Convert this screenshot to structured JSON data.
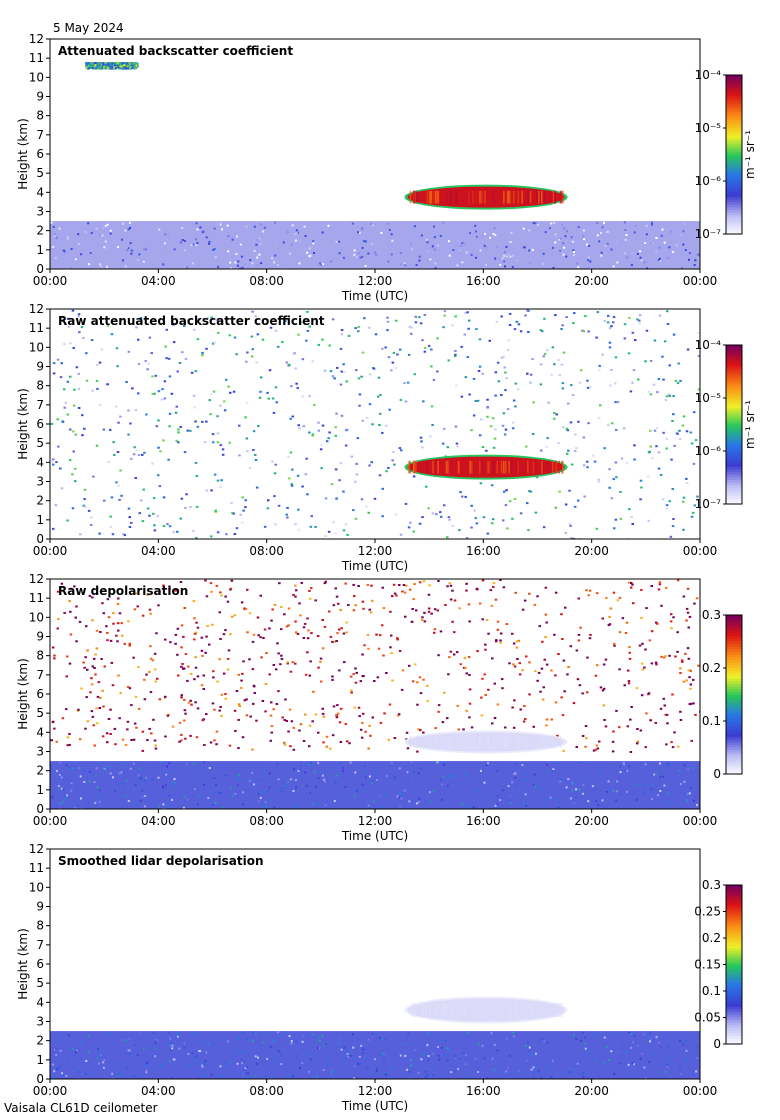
{
  "date": "5 May 2024",
  "footer": "Vaisala CL61D ceilometer",
  "colors": {
    "background": "#ffffff",
    "low_signal": "#3c3cd2",
    "high_signal": "#e62814",
    "depol_noise": "#8c1a6e",
    "depol_low": "#2828e6"
  },
  "chart_data": [
    {
      "type": "heatmap",
      "title": "Attenuated backscatter coefficient",
      "xlabel": "Time (UTC)",
      "ylabel": "Height (km)",
      "xticks": [
        "00:00",
        "04:00",
        "08:00",
        "12:00",
        "16:00",
        "20:00",
        "00:00"
      ],
      "xlim": [
        0,
        24
      ],
      "ylim": [
        0,
        12
      ],
      "yticks": [
        0,
        1,
        2,
        3,
        4,
        5,
        6,
        7,
        8,
        9,
        10,
        11,
        12
      ],
      "colorbar": {
        "scale": "log",
        "unit": "m⁻¹ sr⁻¹",
        "range": [
          1e-07,
          0.0001
        ],
        "ticks": [
          "10⁻⁴",
          "10⁻⁵",
          "10⁻⁶",
          "10⁻⁷"
        ]
      },
      "features": [
        {
          "label": "boundary layer aerosol",
          "t_start": 0,
          "t_end": 24,
          "h_bottom": 0,
          "h_top": 2.5,
          "value": 3e-07
        },
        {
          "label": "mid-level cloud",
          "t_start": 13.2,
          "t_end": 19.0,
          "h_bottom": 3.2,
          "h_top": 4.3,
          "value": 5e-05
        },
        {
          "label": "high-level layer",
          "t_start": 1.3,
          "t_end": 3.2,
          "h_bottom": 10.5,
          "h_top": 10.8,
          "value": 2e-06
        }
      ]
    },
    {
      "type": "heatmap",
      "title": "Raw attenuated backscatter coefficient",
      "xlabel": "Time (UTC)",
      "ylabel": "Height (km)",
      "xticks": [
        "00:00",
        "04:00",
        "08:00",
        "12:00",
        "16:00",
        "20:00",
        "00:00"
      ],
      "xlim": [
        0,
        24
      ],
      "ylim": [
        0,
        12
      ],
      "yticks": [
        0,
        1,
        2,
        3,
        4,
        5,
        6,
        7,
        8,
        9,
        10,
        11,
        12
      ],
      "colorbar": {
        "scale": "log",
        "unit": "m⁻¹ sr⁻¹",
        "range": [
          1e-07,
          0.0001
        ],
        "ticks": [
          "10⁻⁴",
          "10⁻⁵",
          "10⁻⁶",
          "10⁻⁷"
        ]
      },
      "features": [
        {
          "label": "noisy background",
          "t_start": 0,
          "t_end": 24,
          "h_bottom": 0,
          "h_top": 12,
          "value": 8e-07
        },
        {
          "label": "mid-level cloud",
          "t_start": 13.2,
          "t_end": 19.0,
          "h_bottom": 3.2,
          "h_top": 4.3,
          "value": 5e-05
        }
      ]
    },
    {
      "type": "heatmap",
      "title": "Raw depolarisation",
      "xlabel": "Time (UTC)",
      "ylabel": "Height (km)",
      "xticks": [
        "00:00",
        "04:00",
        "08:00",
        "12:00",
        "16:00",
        "20:00",
        "00:00"
      ],
      "xlim": [
        0,
        24
      ],
      "ylim": [
        0,
        12
      ],
      "yticks": [
        0,
        1,
        2,
        3,
        4,
        5,
        6,
        7,
        8,
        9,
        10,
        11,
        12
      ],
      "colorbar": {
        "scale": "linear",
        "unit": "",
        "range": [
          0,
          0.3
        ],
        "ticks": [
          "0.3",
          "0.2",
          "0.1",
          "0"
        ]
      },
      "features": [
        {
          "label": "noise above boundary layer",
          "t_start": 0,
          "t_end": 24,
          "h_bottom": 3,
          "h_top": 12,
          "value": 0.28
        },
        {
          "label": "boundary layer",
          "t_start": 0,
          "t_end": 24,
          "h_bottom": 0,
          "h_top": 2.5,
          "value": 0.08
        },
        {
          "label": "cloud",
          "t_start": 13.2,
          "t_end": 19.0,
          "h_bottom": 3.0,
          "h_top": 4.0,
          "value": 0.02
        }
      ]
    },
    {
      "type": "heatmap",
      "title": "Smoothed lidar depolarisation",
      "xlabel": "Time (UTC)",
      "ylabel": "Height (km)",
      "xticks": [
        "00:00",
        "04:00",
        "08:00",
        "12:00",
        "16:00",
        "20:00",
        "00:00"
      ],
      "xlim": [
        0,
        24
      ],
      "ylim": [
        0,
        12
      ],
      "yticks": [
        0,
        1,
        2,
        3,
        4,
        5,
        6,
        7,
        8,
        9,
        10,
        11,
        12
      ],
      "colorbar": {
        "scale": "linear",
        "unit": "",
        "range": [
          0,
          0.3
        ],
        "ticks": [
          "0.3",
          "0.25",
          "0.2",
          "0.15",
          "0.1",
          "0.05",
          "0"
        ]
      },
      "features": [
        {
          "label": "boundary layer",
          "t_start": 0,
          "t_end": 24,
          "h_bottom": 0,
          "h_top": 2.5,
          "value": 0.08
        },
        {
          "label": "cloud",
          "t_start": 13.2,
          "t_end": 19.0,
          "h_bottom": 3.0,
          "h_top": 4.2,
          "value": 0.02
        }
      ]
    }
  ]
}
